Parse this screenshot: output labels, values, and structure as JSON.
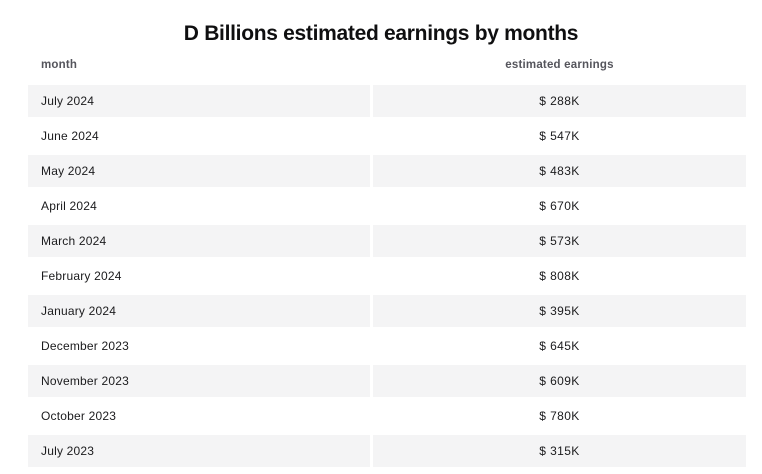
{
  "title": "D Billions estimated earnings by months",
  "table": {
    "headers": {
      "month": "month",
      "earnings": "estimated earnings"
    },
    "rows": [
      {
        "month": "July 2024",
        "earnings": "$ 288K"
      },
      {
        "month": "June 2024",
        "earnings": "$ 547K"
      },
      {
        "month": "May 2024",
        "earnings": "$ 483K"
      },
      {
        "month": "April 2024",
        "earnings": "$ 670K"
      },
      {
        "month": "March 2024",
        "earnings": "$ 573K"
      },
      {
        "month": "February 2024",
        "earnings": "$ 808K"
      },
      {
        "month": "January 2024",
        "earnings": "$ 395K"
      },
      {
        "month": "December 2023",
        "earnings": "$ 645K"
      },
      {
        "month": "November 2023",
        "earnings": "$ 609K"
      },
      {
        "month": "October 2023",
        "earnings": "$ 780K"
      },
      {
        "month": "July 2023",
        "earnings": "$ 315K"
      }
    ]
  },
  "colors": {
    "row_stripe_bg": "#f4f4f5",
    "row_plain_bg": "#ffffff",
    "header_text": "#55555c",
    "cell_text": "#1b1b1d",
    "title_text": "#0f0f10"
  },
  "chart_data": {
    "type": "table",
    "title": "D Billions estimated earnings by months",
    "columns": [
      "month",
      "estimated earnings"
    ],
    "rows": [
      [
        "July 2024",
        "$ 288K"
      ],
      [
        "June 2024",
        "$ 547K"
      ],
      [
        "May 2024",
        "$ 483K"
      ],
      [
        "April 2024",
        "$ 670K"
      ],
      [
        "March 2024",
        "$ 573K"
      ],
      [
        "February 2024",
        "$ 808K"
      ],
      [
        "January 2024",
        "$ 395K"
      ],
      [
        "December 2023",
        "$ 645K"
      ],
      [
        "November 2023",
        "$ 609K"
      ],
      [
        "October 2023",
        "$ 780K"
      ],
      [
        "July 2023",
        "$ 315K"
      ]
    ],
    "earnings_numeric_thousands_usd": [
      288,
      547,
      483,
      670,
      573,
      808,
      395,
      645,
      609,
      780,
      315
    ]
  }
}
